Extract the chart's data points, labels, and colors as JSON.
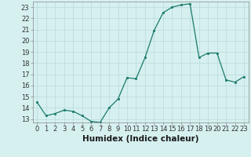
{
  "x": [
    0,
    1,
    2,
    3,
    4,
    5,
    6,
    7,
    8,
    9,
    10,
    11,
    12,
    13,
    14,
    15,
    16,
    17,
    18,
    19,
    20,
    21,
    22,
    23
  ],
  "y": [
    14.5,
    13.3,
    13.5,
    13.8,
    13.7,
    13.3,
    12.8,
    12.7,
    14.0,
    14.8,
    16.7,
    16.6,
    18.5,
    20.9,
    22.5,
    23.0,
    23.2,
    23.3,
    18.5,
    18.9,
    18.9,
    16.5,
    16.3,
    16.8
  ],
  "line_color": "#1a7a6a",
  "marker_color": "#1a7a6a",
  "bg_color": "#d6f0f0",
  "grid_color": "#b8dada",
  "xlabel": "Humidex (Indice chaleur)",
  "ylim": [
    12.7,
    23.5
  ],
  "xlim": [
    -0.5,
    23.5
  ],
  "yticks": [
    13,
    14,
    15,
    16,
    17,
    18,
    19,
    20,
    21,
    22,
    23
  ],
  "xticks": [
    0,
    1,
    2,
    3,
    4,
    5,
    6,
    7,
    8,
    9,
    10,
    11,
    12,
    13,
    14,
    15,
    16,
    17,
    18,
    19,
    20,
    21,
    22,
    23
  ],
  "tick_fontsize": 6.0,
  "xlabel_fontsize": 7.5
}
